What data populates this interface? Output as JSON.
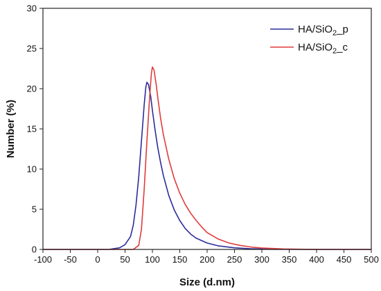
{
  "chart_data": {
    "type": "line",
    "xlabel": "Size (d.nm)",
    "ylabel": "Number (%)",
    "xlim": [
      -100,
      500
    ],
    "ylim": [
      0,
      30
    ],
    "xticks": [
      -100,
      -50,
      0,
      50,
      100,
      150,
      200,
      250,
      300,
      350,
      400,
      450,
      500
    ],
    "yticks": [
      0,
      5,
      10,
      15,
      20,
      25,
      30
    ],
    "grid": false,
    "legend_position": "top-right",
    "series": [
      {
        "name": "HA/SiO2_p",
        "legend_main": "HA/SiO",
        "legend_sub": "2",
        "legend_suffix": "_p",
        "color": "#2b2b9a",
        "points": [
          [
            -100,
            0
          ],
          [
            20,
            0
          ],
          [
            40,
            0.2
          ],
          [
            50,
            0.6
          ],
          [
            60,
            1.6
          ],
          [
            65,
            3.0
          ],
          [
            70,
            5.5
          ],
          [
            75,
            9.0
          ],
          [
            80,
            13.5
          ],
          [
            85,
            18.0
          ],
          [
            88,
            20.2
          ],
          [
            90,
            20.8
          ],
          [
            93,
            20.5
          ],
          [
            97,
            19.0
          ],
          [
            100,
            17.3
          ],
          [
            105,
            14.8
          ],
          [
            110,
            12.6
          ],
          [
            115,
            10.8
          ],
          [
            120,
            9.2
          ],
          [
            130,
            6.7
          ],
          [
            140,
            4.9
          ],
          [
            150,
            3.6
          ],
          [
            160,
            2.6
          ],
          [
            170,
            1.9
          ],
          [
            180,
            1.4
          ],
          [
            200,
            0.8
          ],
          [
            220,
            0.45
          ],
          [
            250,
            0.2
          ],
          [
            280,
            0.08
          ],
          [
            320,
            0.02
          ],
          [
            400,
            0
          ],
          [
            500,
            0
          ]
        ]
      },
      {
        "name": "HA/SiO2_c",
        "legend_main": "HA/SiO",
        "legend_sub": "2",
        "legend_suffix": "_c",
        "color": "#e03a3a",
        "points": [
          [
            -100,
            0
          ],
          [
            65,
            0
          ],
          [
            75,
            0.5
          ],
          [
            80,
            2.5
          ],
          [
            85,
            7.5
          ],
          [
            90,
            13.5
          ],
          [
            95,
            19.0
          ],
          [
            98,
            21.8
          ],
          [
            100,
            22.7
          ],
          [
            103,
            22.3
          ],
          [
            107,
            20.5
          ],
          [
            110,
            18.8
          ],
          [
            115,
            16.3
          ],
          [
            120,
            14.3
          ],
          [
            130,
            11.2
          ],
          [
            140,
            8.8
          ],
          [
            150,
            7.0
          ],
          [
            160,
            5.6
          ],
          [
            170,
            4.5
          ],
          [
            180,
            3.6
          ],
          [
            190,
            2.8
          ],
          [
            200,
            2.1
          ],
          [
            220,
            1.3
          ],
          [
            240,
            0.8
          ],
          [
            260,
            0.5
          ],
          [
            280,
            0.3
          ],
          [
            300,
            0.18
          ],
          [
            340,
            0.06
          ],
          [
            380,
            0.02
          ],
          [
            420,
            0
          ],
          [
            500,
            0
          ]
        ]
      }
    ]
  }
}
